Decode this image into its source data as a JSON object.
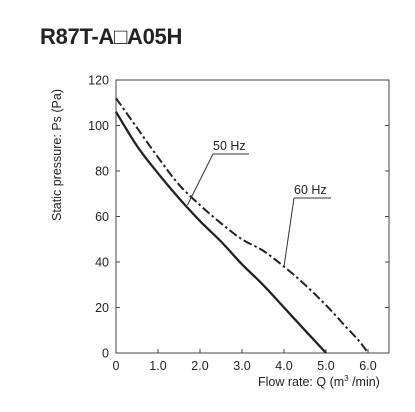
{
  "chart_data": {
    "type": "line",
    "title": "R87T-A□A05H",
    "xlabel": "Flow rate: Q",
    "xlabel_unit_prefix": "(m",
    "xlabel_unit_sup": "3",
    "xlabel_unit_suffix": " /min)",
    "ylabel": "Static pressure: Ps (Pa)",
    "xlim": [
      0,
      6.5
    ],
    "ylim": [
      0,
      120
    ],
    "x_ticks": [
      0,
      1.0,
      2.0,
      3.0,
      4.0,
      5.0,
      6.0
    ],
    "x_tick_labels": [
      "0",
      "1.0",
      "2.0",
      "3.0",
      "4.0",
      "5.0",
      "6.0"
    ],
    "y_ticks": [
      0,
      20,
      40,
      60,
      80,
      100,
      120
    ],
    "y_tick_labels": [
      "0",
      "20",
      "40",
      "60",
      "80",
      "100",
      "120"
    ],
    "grid": false,
    "series": [
      {
        "name": "50 Hz",
        "style": "solid",
        "color": "#222222",
        "x": [
          0,
          0.5,
          1.0,
          1.5,
          2.0,
          2.5,
          3.0,
          3.5,
          4.0,
          4.5,
          4.8,
          5.0
        ],
        "y": [
          106,
          91,
          79,
          68,
          58,
          49,
          39,
          30,
          20,
          10,
          4,
          0
        ]
      },
      {
        "name": "60 Hz",
        "style": "dashdot",
        "color": "#222222",
        "x": [
          0,
          0.5,
          1.0,
          1.5,
          2.0,
          2.5,
          3.0,
          3.5,
          4.0,
          4.5,
          5.0,
          5.5,
          5.8,
          6.0
        ],
        "y": [
          112,
          99,
          86,
          74,
          65,
          57,
          50,
          45,
          38,
          30,
          21,
          11,
          5,
          0
        ]
      }
    ],
    "annotations": [
      {
        "text": "50 Hz",
        "series": 0,
        "point": [
          1.7,
          65
        ]
      },
      {
        "text": "60 Hz",
        "series": 1,
        "point": [
          4.0,
          38
        ]
      }
    ]
  }
}
